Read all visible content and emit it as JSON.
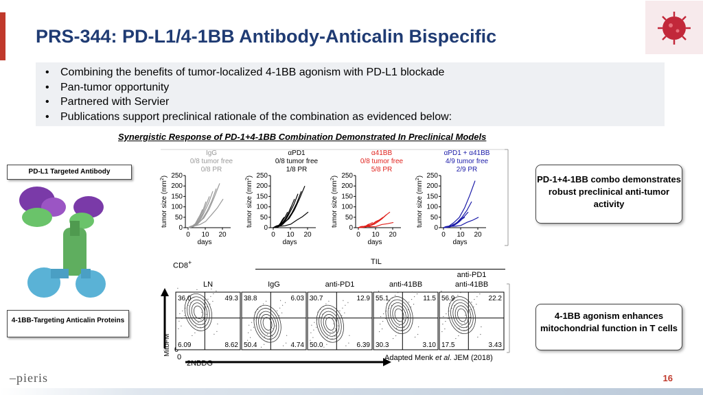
{
  "title": "PRS-344: PD-L1/4-1BB Antibody-Anticalin Bispecific",
  "bullets": [
    "Combining the benefits of tumor-localized 4-1BB agonism with PD-L1 blockade",
    "Pan-tumor opportunity",
    "Partnered with Servier",
    "Publications support preclinical rationale of the combination as evidenced below:"
  ],
  "subheading": "Synergistic Response of PD-1+4-1BB Combination Demonstrated In Preclinical Models",
  "molecule_labels": {
    "pdl1": "PD-L1 Targeted Antibody",
    "anticalin": "4-1BB-Targeting Anticalin Proteins"
  },
  "callouts": {
    "top": "PD-1+4-1BB combo demonstrates robust preclinical anti-tumor activity",
    "bottom": "4-1BB agonism enhances mitochondrial function in T cells"
  },
  "tumor_panels": [
    {
      "name": "IgG",
      "l1": "0/8 tumor free",
      "l2": "0/8 PR",
      "color": "#999999"
    },
    {
      "name": "αPD1",
      "l1": "0/8 tumor free",
      "l2": "1/8 PR",
      "color": "#000000"
    },
    {
      "name": "α41BB",
      "l1": "0/8 tumor free",
      "l2": "5/8 PR",
      "color": "#e0201b"
    },
    {
      "name": "αPD1 +  α41BB",
      "l1": "4/9 tumor free",
      "l2": "2/9 PR",
      "color": "#1a1aa8"
    }
  ],
  "tumor_axis": {
    "ylabel": "tumor size (mm",
    "ylabel_sup": "2",
    "xlabel": "days",
    "yticks": [
      "250",
      "200",
      "150",
      "100",
      "50",
      "0"
    ],
    "xticks": [
      "0",
      "10",
      "20"
    ]
  },
  "flow": {
    "cd8": "CD8",
    "cd8_sup": "+",
    "til": "TIL",
    "y_label": "MitoFM",
    "x_label": "2NBDG",
    "zero_y": "0",
    "zero_x": "0",
    "citation_pre": "Adapted Menk ",
    "citation_italic": "et al",
    "citation_post": ". JEM (2018)",
    "panels": [
      {
        "title": "LN",
        "title2": "",
        "tl": "36.0",
        "tr": "49.3",
        "bl": "6.09",
        "br": "8.62"
      },
      {
        "title": "IgG",
        "title2": "",
        "tl": "38.8",
        "tr": "6.03",
        "bl": "50.4",
        "br": "4.74"
      },
      {
        "title": "anti-PD1",
        "title2": "",
        "tl": "30.7",
        "tr": "12.9",
        "bl": "50.0",
        "br": "6.39"
      },
      {
        "title": "anti-41BB",
        "title2": "",
        "tl": "55.1",
        "tr": "11.5",
        "bl": "30.3",
        "br": "3.10"
      },
      {
        "title": "anti-PD1",
        "title2": "anti-41BB",
        "tl": "56.9",
        "tr": "22.2",
        "bl": "17.5",
        "br": "3.43"
      }
    ]
  },
  "logo_text": "pieris",
  "page_number": "16"
}
